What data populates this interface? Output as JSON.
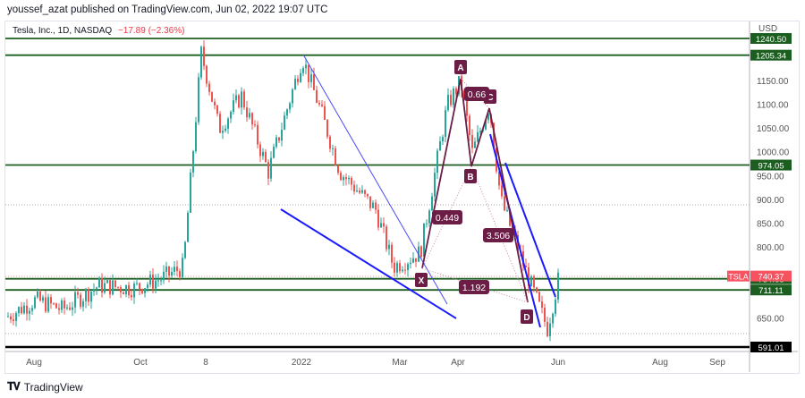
{
  "header": {
    "published": "youssef_azat published on TradingView.com, Jun 02, 2022 19:07 UTC"
  },
  "legend": {
    "symbol": "Tesla, Inc., 1D, NASDAQ",
    "change": "−17.89 (−2.36%)"
  },
  "footer": {
    "brand": "TradingView",
    "logo_icon": "tradingview-logo-icon"
  },
  "colors": {
    "up": "#26a69a",
    "down": "#ef5350",
    "level": "#1b5e20",
    "trend": "#1a1aff",
    "harmonic": "#6b1d45",
    "neutral": "#000000"
  },
  "chart_data": {
    "type": "candlestick",
    "title": "Tesla, Inc., 1D, NASDAQ",
    "currency": "USD",
    "ylim": [
      580,
      1255
    ],
    "y_ticks": [
      "1150.00",
      "1100.00",
      "1050.00",
      "1000.00",
      "950.00",
      "900.00",
      "850.00",
      "800.00",
      "650.00"
    ],
    "x_ticks": [
      "Aug",
      "Oct",
      "8",
      "2022",
      "Mar",
      "Apr",
      "Jun",
      "Aug",
      "Sep"
    ],
    "last_price": {
      "symbol": "TSLA",
      "value": "740.37"
    },
    "horizontal_levels": [
      {
        "value": "1240.50",
        "color": "#1b5e20"
      },
      {
        "value": "1205.34",
        "color": "#1b5e20"
      },
      {
        "value": "974.05",
        "color": "#1b5e20"
      },
      {
        "value": "734.68",
        "color": "#1b5e20"
      },
      {
        "value": "711.11",
        "color": "#1b5e20"
      },
      {
        "value": "591.01",
        "color": "#000000"
      }
    ],
    "harmonic_pattern": {
      "points": [
        "X",
        "A",
        "B",
        "C",
        "D"
      ],
      "ratios": [
        "0.449",
        "0.66",
        "3.506",
        "1.192"
      ]
    },
    "approx_series": {
      "dates": [
        "Jul-21",
        "Aug-21",
        "Sep-21",
        "Oct-21",
        "Nov-21",
        "Dec-21",
        "Jan-22",
        "Feb-22",
        "Mar-22",
        "Apr-22",
        "May-22",
        "Jun-22"
      ],
      "close": [
        650,
        710,
        760,
        1000,
        1140,
        1050,
        940,
        870,
        790,
        1150,
        700,
        740
      ]
    }
  }
}
